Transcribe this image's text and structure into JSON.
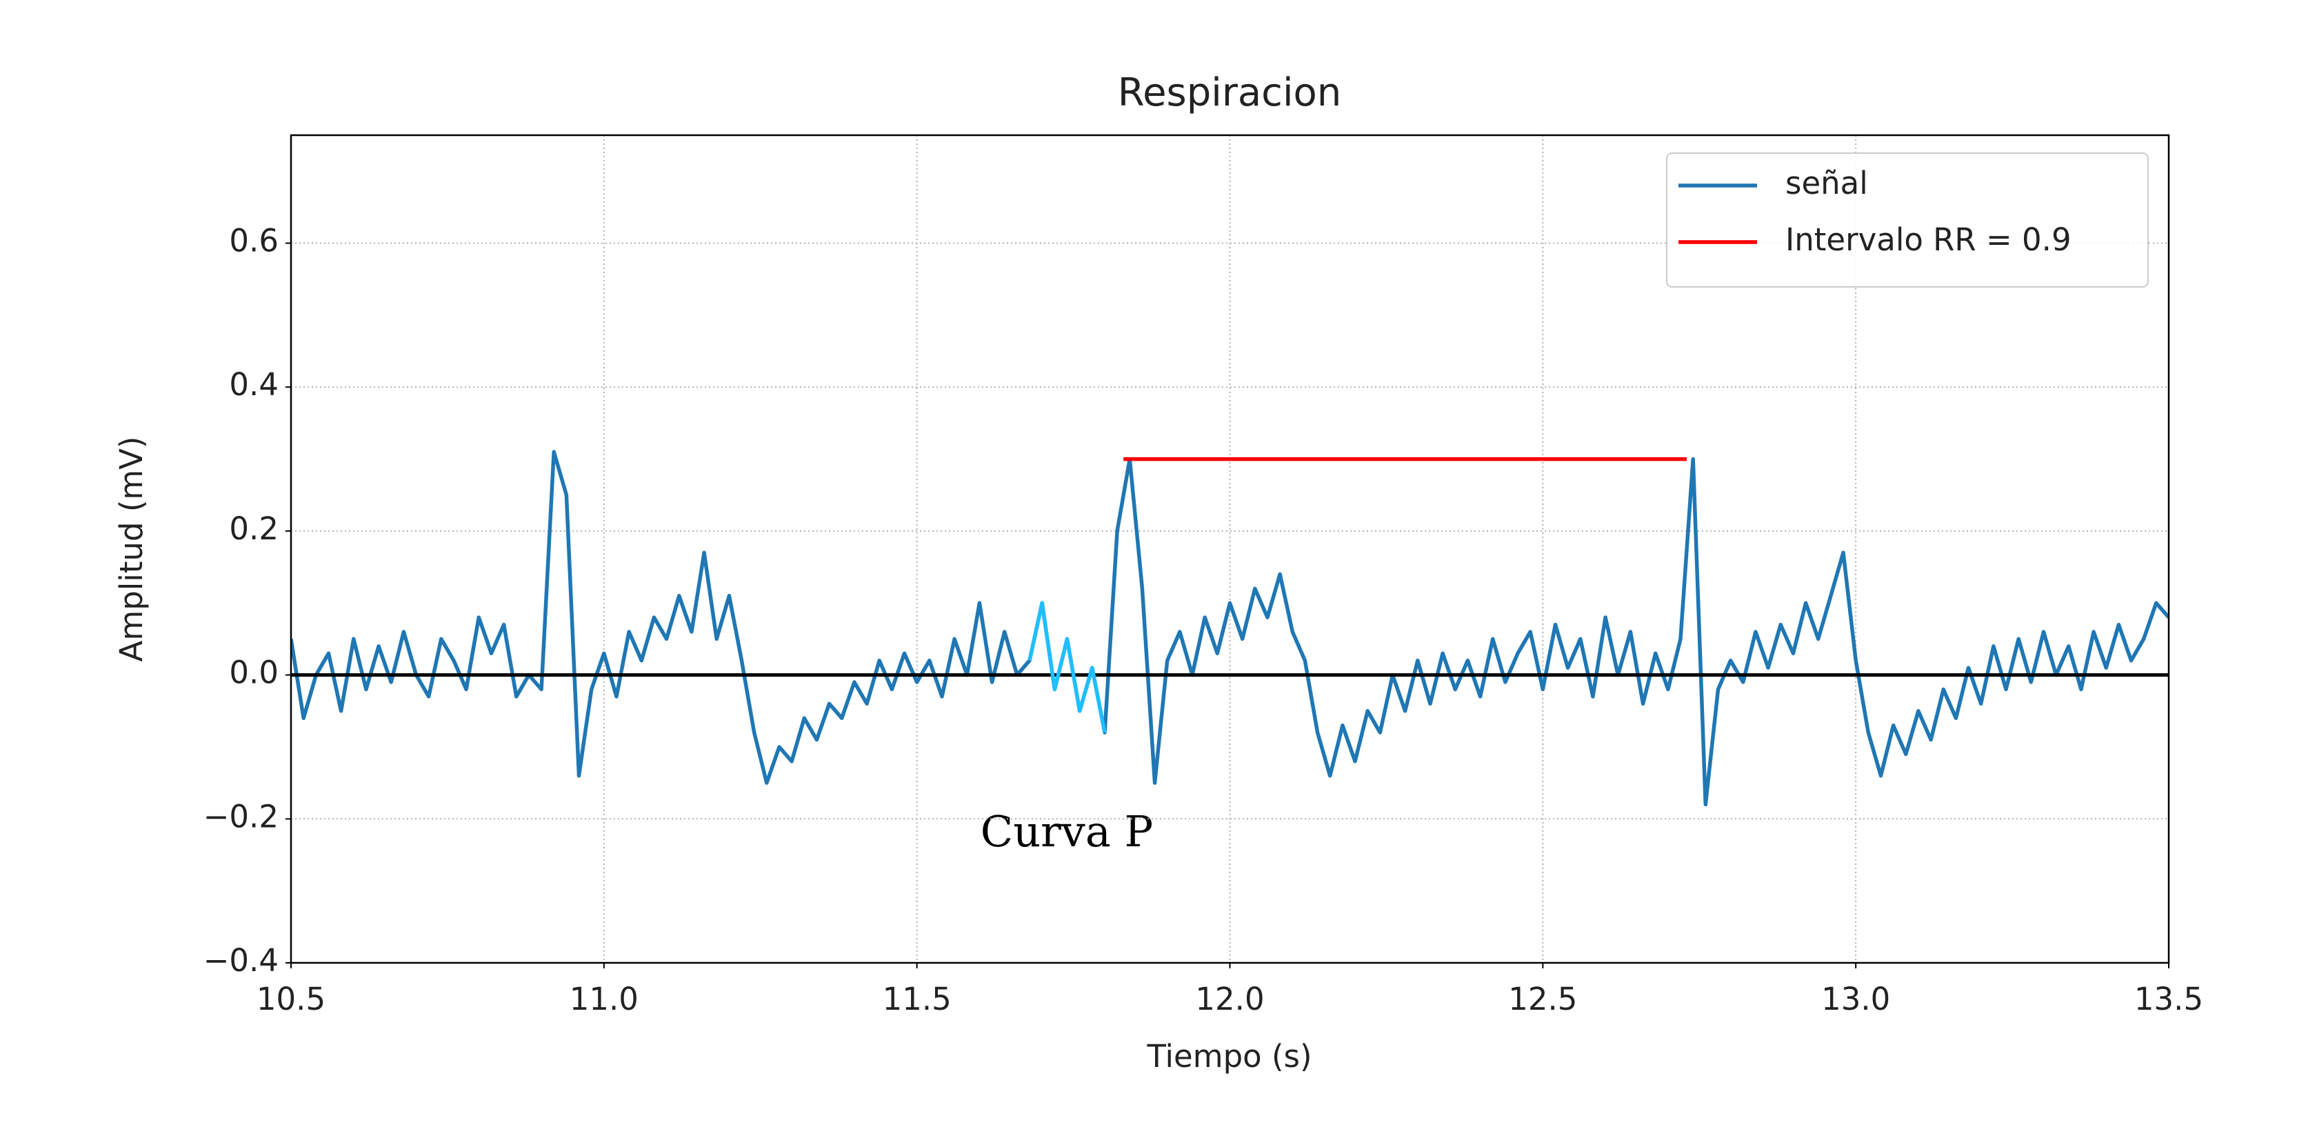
{
  "chart_data": {
    "type": "line",
    "title": "Respiracion",
    "x_label": "Tiempo (s)",
    "y_label": "Amplitud (mV)",
    "xlim": [
      10.5,
      13.5
    ],
    "ylim": [
      -0.4,
      0.75
    ],
    "xticks": [
      10.5,
      {
        "value": 11,
        "label": "11.0"
      },
      11.5,
      {
        "value": 12,
        "label": "12.0"
      },
      12.5,
      {
        "value": 13,
        "label": "13.0"
      },
      13.5
    ],
    "yticks": [
      {
        "value": -0.4,
        "label": "−0.4"
      },
      {
        "value": -0.2,
        "label": "−0.2"
      },
      {
        "value": 0,
        "label": "0.0"
      },
      0.2,
      0.4,
      0.6
    ],
    "grid": true,
    "legend": "upper right",
    "series": [
      {
        "name": "señal",
        "color": "#1f77b4",
        "x": [
          10.5,
          10.52,
          10.54,
          10.56,
          10.58,
          10.6,
          10.62,
          10.64,
          10.66,
          10.68,
          10.7,
          10.72,
          10.74,
          10.76,
          10.78,
          10.8,
          10.82,
          10.84,
          10.86,
          10.88,
          10.9,
          10.92,
          10.94,
          10.96,
          10.98,
          11,
          11.02,
          11.04,
          11.06,
          11.08,
          11.1,
          11.12,
          11.14,
          11.16,
          11.18,
          11.2,
          11.22,
          11.24,
          11.26,
          11.28,
          11.3,
          11.32,
          11.34,
          11.36,
          11.38,
          11.4,
          11.42,
          11.44,
          11.46,
          11.48,
          11.5,
          11.52,
          11.54,
          11.56,
          11.58,
          11.6,
          11.62,
          11.64,
          11.66,
          11.68,
          11.7,
          11.72,
          11.74,
          11.76,
          11.78,
          11.8,
          11.82,
          11.84,
          11.86,
          11.88,
          11.9,
          11.92,
          11.94,
          11.96,
          11.98,
          12,
          12.02,
          12.04,
          12.06,
          12.08,
          12.1,
          12.12,
          12.14,
          12.16,
          12.18,
          12.2,
          12.22,
          12.24,
          12.26,
          12.28,
          12.3,
          12.32,
          12.34,
          12.36,
          12.38,
          12.4,
          12.42,
          12.44,
          12.46,
          12.48,
          12.5,
          12.52,
          12.54,
          12.56,
          12.58,
          12.6,
          12.62,
          12.64,
          12.66,
          12.68,
          12.7,
          12.72,
          12.74,
          12.76,
          12.78,
          12.8,
          12.82,
          12.84,
          12.86,
          12.88,
          12.9,
          12.92,
          12.94,
          12.96,
          12.98,
          13,
          13.02,
          13.04,
          13.06,
          13.08,
          13.1,
          13.12,
          13.14,
          13.16,
          13.18,
          13.2,
          13.22,
          13.24,
          13.26,
          13.28,
          13.3,
          13.32,
          13.34,
          13.36,
          13.38,
          13.4,
          13.42,
          13.44,
          13.46,
          13.48,
          13.5
        ],
        "values": [
          0.05,
          -0.06,
          0.0,
          0.03,
          -0.05,
          0.05,
          -0.02,
          0.04,
          -0.01,
          0.06,
          0.0,
          -0.03,
          0.05,
          0.02,
          -0.02,
          0.08,
          0.03,
          0.07,
          -0.03,
          0.0,
          -0.02,
          0.31,
          0.25,
          -0.14,
          -0.02,
          0.03,
          -0.03,
          0.06,
          0.02,
          0.08,
          0.05,
          0.11,
          0.06,
          0.17,
          0.05,
          0.11,
          0.02,
          -0.08,
          -0.15,
          -0.1,
          -0.12,
          -0.06,
          -0.09,
          -0.04,
          -0.06,
          -0.01,
          -0.04,
          0.02,
          -0.02,
          0.03,
          -0.01,
          0.02,
          -0.03,
          0.05,
          0.0,
          0.1,
          -0.01,
          0.06,
          0.0,
          0.02,
          0.1,
          -0.02,
          0.05,
          -0.05,
          0.01,
          -0.08,
          0.2,
          0.3,
          0.12,
          -0.15,
          0.02,
          0.06,
          0.0,
          0.08,
          0.03,
          0.1,
          0.05,
          0.12,
          0.08,
          0.14,
          0.06,
          0.02,
          -0.08,
          -0.14,
          -0.07,
          -0.12,
          -0.05,
          -0.08,
          0.0,
          -0.05,
          0.02,
          -0.04,
          0.03,
          -0.02,
          0.02,
          -0.03,
          0.05,
          -0.01,
          0.03,
          0.06,
          -0.02,
          0.07,
          0.01,
          0.05,
          -0.03,
          0.08,
          0.0,
          0.06,
          -0.04,
          0.03,
          -0.02,
          0.05,
          0.3,
          -0.18,
          -0.02,
          0.02,
          -0.01,
          0.06,
          0.01,
          0.07,
          0.03,
          0.1,
          0.05,
          0.11,
          0.17,
          0.02,
          -0.08,
          -0.14,
          -0.07,
          -0.11,
          -0.05,
          -0.09,
          -0.02,
          -0.06,
          0.01,
          -0.04,
          0.04,
          -0.02,
          0.05,
          -0.01,
          0.06,
          0.0,
          0.04,
          -0.02,
          0.06,
          0.01,
          0.07,
          0.02,
          0.05,
          0.1,
          0.08
        ]
      },
      {
        "name": "Intervalo RR = 0.9",
        "color": "#ff0000",
        "x": [
          11.83,
          12.73
        ],
        "values": [
          0.3,
          0.3
        ]
      }
    ],
    "highlight": {
      "color": "#1fbfff",
      "x": [
        11.68,
        11.7,
        11.72,
        11.74,
        11.76,
        11.78,
        11.8
      ],
      "values": [
        0.02,
        0.1,
        -0.02,
        0.05,
        -0.05,
        0.01,
        -0.08
      ]
    },
    "hlines": [
      {
        "y": 0,
        "color": "#000000"
      }
    ],
    "annotation": "Curva P"
  }
}
